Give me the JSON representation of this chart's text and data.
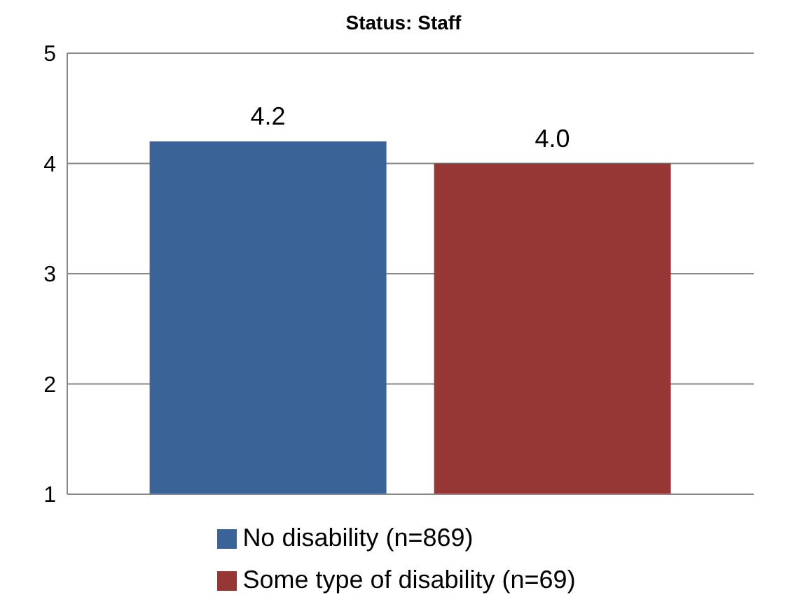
{
  "chart_data": {
    "type": "bar",
    "title": "Status: Staff",
    "categories": [
      null
    ],
    "series": [
      {
        "name": "No disability (n=869)",
        "color": "#3a6497",
        "values": [
          4.2
        ],
        "value_labels": [
          "4.2"
        ]
      },
      {
        "name": "Some type of disability (n=69)",
        "color": "#963735",
        "values": [
          4.0
        ],
        "value_labels": [
          "4.0"
        ]
      }
    ],
    "ylim": [
      1,
      5
    ],
    "yticks": [
      1,
      2,
      3,
      4,
      5
    ],
    "grid": "y",
    "legend": "bottom"
  }
}
